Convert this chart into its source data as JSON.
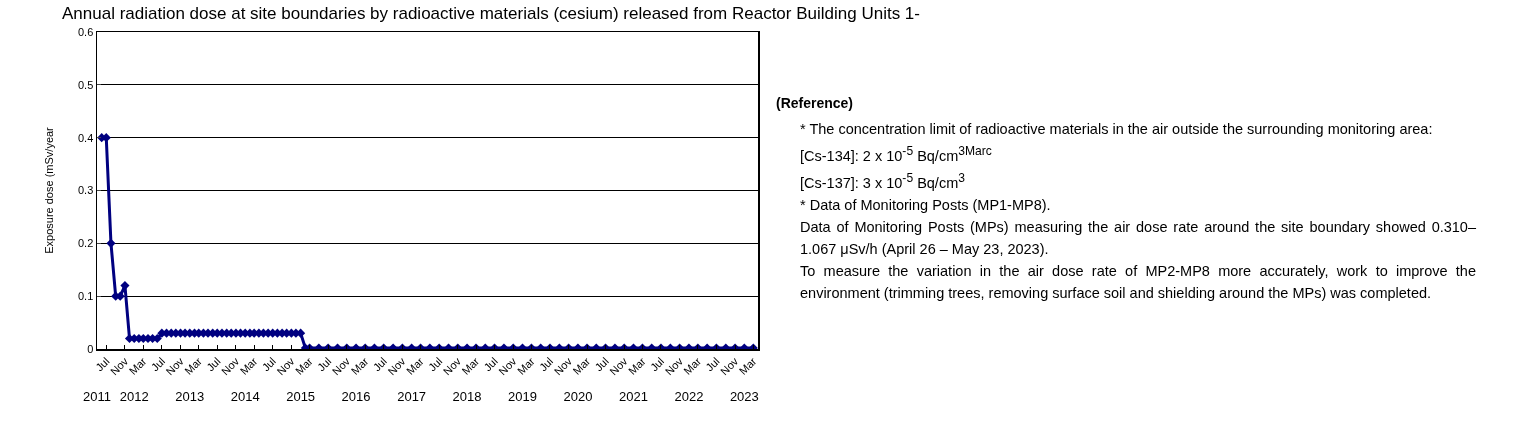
{
  "chart_data": {
    "type": "line",
    "title": "Annual radiation dose at site boundaries by radioactive materials (cesium) released from Reactor Building Units 1-",
    "ylabel": "Exposure dose (mSv/year",
    "x": [
      "2011-06",
      "2011-07",
      "2011-08",
      "2011-09",
      "2011-10",
      "2011-11",
      "2011-12",
      "2012-01",
      "2012-02",
      "2012-03",
      "2012-04",
      "2012-05",
      "2012-06",
      "2012-07",
      "2012-08",
      "2012-09",
      "2012-10",
      "2012-11",
      "2012-12",
      "2013-01",
      "2013-02",
      "2013-03",
      "2013-04",
      "2013-05",
      "2013-06",
      "2013-07",
      "2013-08",
      "2013-09",
      "2013-10",
      "2013-11",
      "2013-12",
      "2014-01",
      "2014-02",
      "2014-03",
      "2014-04",
      "2014-05",
      "2014-06",
      "2014-07",
      "2014-08",
      "2014-09",
      "2014-10",
      "2014-11",
      "2014-12",
      "2015-01",
      "2015-02",
      "2015-03",
      "2015-05",
      "2015-07",
      "2015-09",
      "2015-11",
      "2016-01",
      "2016-03",
      "2016-05",
      "2016-07",
      "2016-09",
      "2016-11",
      "2017-01",
      "2017-03",
      "2017-05",
      "2017-07",
      "2017-09",
      "2017-11",
      "2018-01",
      "2018-03",
      "2018-05",
      "2018-07",
      "2018-09",
      "2018-11",
      "2019-01",
      "2019-03",
      "2019-05",
      "2019-07",
      "2019-09",
      "2019-11",
      "2020-01",
      "2020-03",
      "2020-05",
      "2020-07",
      "2020-09",
      "2020-11",
      "2021-01",
      "2021-03",
      "2021-05",
      "2021-07",
      "2021-09",
      "2021-11",
      "2022-01",
      "2022-03",
      "2022-05",
      "2022-07",
      "2022-09",
      "2022-11",
      "2023-01",
      "2023-03"
    ],
    "series": [
      {
        "color": "#000080",
        "values": [
          0.4,
          0.4,
          0.2,
          0.1,
          0.1,
          0.12,
          0.02,
          0.02,
          0.02,
          0.02,
          0.02,
          0.02,
          0.02,
          0.03,
          0.03,
          0.03,
          0.03,
          0.03,
          0.03,
          0.03,
          0.03,
          0.03,
          0.03,
          0.03,
          0.03,
          0.03,
          0.03,
          0.03,
          0.03,
          0.03,
          0.03,
          0.03,
          0.03,
          0.03,
          0.03,
          0.03,
          0.03,
          0.03,
          0.03,
          0.03,
          0.03,
          0.03,
          0.03,
          0.03,
          0.002,
          0.002,
          0.002,
          0.002,
          0.002,
          0.002,
          0.002,
          0.002,
          0.002,
          0.002,
          0.002,
          0.002,
          0.002,
          0.002,
          0.002,
          0.002,
          0.002,
          0.002,
          0.002,
          0.002,
          0.002,
          0.002,
          0.002,
          0.002,
          0.002,
          0.002,
          0.002,
          0.002,
          0.002,
          0.002,
          0.002,
          0.002,
          0.002,
          0.002,
          0.002,
          0.002,
          0.002,
          0.002,
          0.002,
          0.002,
          0.002,
          0.002,
          0.002,
          0.002,
          0.002,
          0.002,
          0.002,
          0.002,
          0.002,
          0.002
        ]
      }
    ],
    "xlim": [
      "2011-05",
      "2023-04"
    ],
    "xticks": [
      {
        "value": "2011-07",
        "label": "Jul"
      },
      {
        "value": "2011-11",
        "label": "Nov"
      },
      {
        "value": "2012-03",
        "label": "Mar"
      },
      {
        "value": "2012-07",
        "label": "Jul"
      },
      {
        "value": "2012-11",
        "label": "Nov"
      },
      {
        "value": "2013-03",
        "label": "Mar"
      },
      {
        "value": "2013-07",
        "label": "Jul"
      },
      {
        "value": "2013-11",
        "label": "Nov"
      },
      {
        "value": "2014-03",
        "label": "Mar"
      },
      {
        "value": "2014-07",
        "label": "Jul"
      },
      {
        "value": "2014-11",
        "label": "Nov"
      },
      {
        "value": "2015-03",
        "label": "Mar"
      },
      {
        "value": "2015-07",
        "label": "Jul"
      },
      {
        "value": "2015-11",
        "label": "Nov"
      },
      {
        "value": "2016-03",
        "label": "Mar"
      },
      {
        "value": "2016-07",
        "label": "Jul"
      },
      {
        "value": "2016-11",
        "label": "Nov"
      },
      {
        "value": "2017-03",
        "label": "Mar"
      },
      {
        "value": "2017-07",
        "label": "Jul"
      },
      {
        "value": "2017-11",
        "label": "Nov"
      },
      {
        "value": "2018-03",
        "label": "Mar"
      },
      {
        "value": "2018-07",
        "label": "Jul"
      },
      {
        "value": "2018-11",
        "label": "Nov"
      },
      {
        "value": "2019-03",
        "label": "Mar"
      },
      {
        "value": "2019-07",
        "label": "Jul"
      },
      {
        "value": "2019-11",
        "label": "Nov"
      },
      {
        "value": "2020-03",
        "label": "Mar"
      },
      {
        "value": "2020-07",
        "label": "Jul"
      },
      {
        "value": "2020-11",
        "label": "Nov"
      },
      {
        "value": "2021-03",
        "label": "Mar"
      },
      {
        "value": "2021-07",
        "label": "Jul"
      },
      {
        "value": "2021-11",
        "label": "Nov"
      },
      {
        "value": "2022-03",
        "label": "Mar"
      },
      {
        "value": "2022-07",
        "label": "Jul"
      },
      {
        "value": "2022-11",
        "label": "Nov"
      },
      {
        "value": "2023-03",
        "label": "Mar"
      }
    ],
    "x2lim": [
      "2011-05",
      "2023-04"
    ],
    "x2ticks": [
      {
        "value": "2011-05",
        "label": "2011"
      },
      {
        "value": "2012-01",
        "label": "2012"
      },
      {
        "value": "2013-01",
        "label": "2013"
      },
      {
        "value": "2014-01",
        "label": "2014"
      },
      {
        "value": "2015-01",
        "label": "2015"
      },
      {
        "value": "2016-01",
        "label": "2016"
      },
      {
        "value": "2017-01",
        "label": "2017"
      },
      {
        "value": "2018-01",
        "label": "2018"
      },
      {
        "value": "2019-01",
        "label": "2019"
      },
      {
        "value": "2020-01",
        "label": "2020"
      },
      {
        "value": "2021-01",
        "label": "2021"
      },
      {
        "value": "2022-01",
        "label": "2022"
      },
      {
        "value": "2023-01",
        "label": "2023"
      }
    ],
    "ylim": [
      0,
      0.6
    ],
    "yticks": [
      0,
      0.1,
      0.2,
      0.3,
      0.4,
      0.5,
      0.6
    ],
    "grid": "y",
    "marker": "diamond",
    "line_style": "solid",
    "annotations": [
      "(Reference)",
      "* The concentration limit of radioactive materials in the air outside the surrounding monitoring area:",
      "[Cs-134]: 2 x 10$^{-5}$ Bq/cm$^{3Marc}$",
      "[Cs-137]: 3 x 10$^{-5}$ Bq/cm$^{3}$",
      "* Data of Monitoring Posts (MP1-MP8).",
      "Data of Monitoring Posts (MPs) measuring the air dose rate around the site boundary showed 0.310– 1.067 μSv/h (April 26 – May 23, 2023).",
      "To measure the variation in the air dose rate of MP2-MP8 more accurately, work to improve the environment (trimming trees, removing surface soil and shielding around the MPs) was completed."
    ]
  }
}
